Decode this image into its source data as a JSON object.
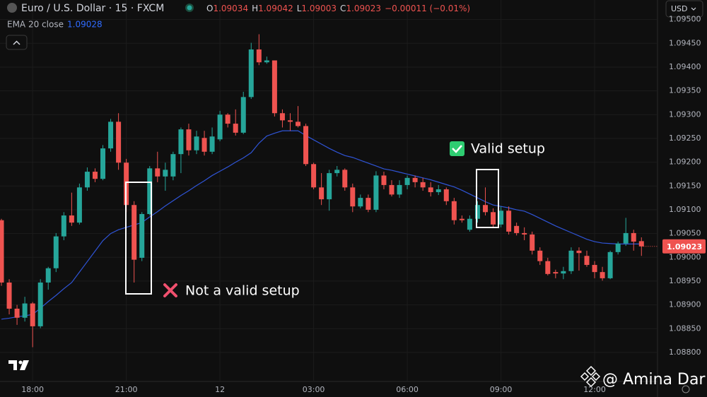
{
  "chart_data": {
    "type": "candlestick",
    "title": "Euro / U.S. Dollar · 15 · FXCM",
    "ohlc_labels": [
      "O",
      "H",
      "L",
      "C"
    ],
    "change": "−0.00011 (−0.01%)",
    "currency": "USD",
    "watermark": "@ Amina Dar",
    "up_color": "#26a69a",
    "down_color": "#ef5350",
    "grid": true,
    "categories": [
      null,
      null,
      null,
      null,
      "18:00",
      null,
      null,
      null,
      null,
      null,
      null,
      null,
      null,
      null,
      null,
      null,
      "21:00",
      null,
      null,
      null,
      null,
      null,
      null,
      null,
      null,
      null,
      null,
      null,
      "12",
      null,
      null,
      null,
      null,
      null,
      null,
      null,
      null,
      null,
      null,
      null,
      "03:00",
      null,
      null,
      null,
      null,
      null,
      null,
      null,
      null,
      null,
      null,
      null,
      "06:00",
      null,
      null,
      null,
      null,
      null,
      null,
      null,
      null,
      null,
      null,
      null,
      "09:00",
      null,
      null,
      null,
      null,
      null,
      null,
      null,
      null,
      null,
      null,
      null,
      "12:00",
      null,
      null,
      null,
      null,
      null,
      null
    ],
    "open": [
      1.09078,
      1.08947,
      1.08892,
      1.08873,
      1.08903,
      1.08855,
      1.08947,
      1.08977,
      1.09044,
      1.09088,
      1.09073,
      1.09147,
      1.0918,
      1.09165,
      1.09229,
      1.09285,
      1.09199,
      1.0911,
      1.08999,
      1.09091,
      1.09187,
      1.0917,
      1.0917,
      1.09217,
      1.09269,
      1.09225,
      1.09251,
      1.09222,
      1.09248,
      1.093,
      1.09281,
      1.09262,
      1.09337,
      1.09437,
      1.0941,
      1.09414,
      1.09303,
      1.09288,
      1.09285,
      1.09276,
      1.09196,
      1.09147,
      1.09122,
      1.09177,
      1.09184,
      1.09147,
      1.09107,
      1.09125,
      1.091,
      1.09172,
      1.09152,
      1.09132,
      1.09152,
      1.09167,
      1.09158,
      1.09147,
      1.09137,
      1.09143,
      1.09118,
      1.09081,
      1.09058,
      1.09081,
      1.0911,
      1.09095,
      1.09069,
      1.09098,
      1.09066,
      1.09051,
      1.09048,
      1.09014,
      1.08992,
      1.08969,
      1.08966,
      1.08971,
      1.09014,
      1.09003,
      1.08984,
      1.08969,
      1.08956,
      1.09011,
      1.09029,
      1.09051,
      1.09034
    ],
    "high": [
      1.09081,
      1.08954,
      1.089,
      1.08917,
      1.08906,
      1.08954,
      1.0898,
      1.09051,
      1.09095,
      1.09136,
      1.09155,
      1.09189,
      1.09187,
      1.09236,
      1.09291,
      1.09303,
      1.09207,
      1.09118,
      1.09095,
      1.09192,
      1.09222,
      1.09199,
      1.09222,
      1.09273,
      1.09281,
      1.09266,
      1.09266,
      1.09273,
      1.09308,
      1.09303,
      1.09311,
      1.09348,
      1.09451,
      1.09469,
      1.09422,
      1.09414,
      1.09311,
      1.09303,
      1.09318,
      1.09281,
      1.09199,
      1.09177,
      1.09184,
      1.09192,
      1.09187,
      1.09155,
      1.09132,
      1.09132,
      1.09181,
      1.0918,
      1.09162,
      1.09162,
      1.09172,
      1.09172,
      1.09167,
      1.09158,
      1.09152,
      1.09147,
      1.09125,
      1.09088,
      1.09088,
      1.09118,
      1.09147,
      1.09103,
      1.09107,
      1.09107,
      1.09073,
      1.09063,
      1.09054,
      1.09021,
      1.08999,
      1.08974,
      1.0898,
      1.09021,
      1.09021,
      1.09014,
      1.08992,
      1.0898,
      1.09014,
      1.09033,
      1.09083,
      1.09058,
      1.09042
    ],
    "low": [
      1.0894,
      1.0888,
      1.08858,
      1.08865,
      1.08811,
      1.08851,
      1.08932,
      1.08969,
      1.09036,
      1.09066,
      1.09069,
      1.0914,
      1.09158,
      1.09162,
      1.09222,
      1.09184,
      1.09095,
      1.08947,
      1.08992,
      1.09088,
      1.09158,
      1.0914,
      1.09162,
      1.09177,
      1.09214,
      1.09217,
      1.09214,
      1.09217,
      1.09244,
      1.09273,
      1.09256,
      1.09259,
      1.09333,
      1.09404,
      1.09407,
      1.09296,
      1.09273,
      1.09266,
      1.09273,
      1.09192,
      1.09143,
      1.0911,
      1.09098,
      1.0917,
      1.0914,
      1.09095,
      1.09103,
      1.09095,
      1.09095,
      1.09143,
      1.09128,
      1.09125,
      1.09143,
      1.09147,
      1.0914,
      1.09128,
      1.09131,
      1.0911,
      1.09069,
      1.09073,
      1.09054,
      1.09073,
      1.09088,
      1.09063,
      1.09063,
      1.09048,
      1.09046,
      1.09036,
      1.09006,
      1.08984,
      1.08962,
      1.08956,
      1.08954,
      1.08965,
      1.08972,
      1.0898,
      1.08956,
      1.08951,
      1.08954,
      1.09006,
      1.09024,
      1.09014,
      1.09003
    ],
    "close": [
      1.08947,
      1.08892,
      1.08873,
      1.08903,
      1.08855,
      1.08947,
      1.08977,
      1.09044,
      1.09088,
      1.09073,
      1.09147,
      1.0918,
      1.09165,
      1.09229,
      1.09285,
      1.09199,
      1.0911,
      1.08995,
      1.09091,
      1.09187,
      1.0917,
      1.09184,
      1.09217,
      1.09269,
      1.09225,
      1.09254,
      1.09222,
      1.09254,
      1.093,
      1.09281,
      1.09262,
      1.09337,
      1.09437,
      1.0941,
      1.09414,
      1.09303,
      1.09288,
      1.09285,
      1.09276,
      1.09196,
      1.09147,
      1.09122,
      1.09177,
      1.09184,
      1.09147,
      1.09107,
      1.09125,
      1.091,
      1.09172,
      1.09152,
      1.09132,
      1.09152,
      1.09167,
      1.09158,
      1.09147,
      1.09137,
      1.09143,
      1.09118,
      1.09078,
      1.09078,
      1.09081,
      1.0911,
      1.09095,
      1.09069,
      1.09098,
      1.09054,
      1.09051,
      1.09048,
      1.09014,
      1.08992,
      1.08965,
      1.08966,
      1.08971,
      1.09014,
      1.09009,
      1.08984,
      1.08969,
      1.08956,
      1.09011,
      1.09029,
      1.09051,
      1.09033,
      1.09023
    ],
    "ema": {
      "name": "EMA 20 close",
      "color": "#2f54d6",
      "values": [
        1.0887,
        1.08872,
        1.08875,
        1.08877,
        1.0888,
        1.08893,
        1.08907,
        1.0892,
        1.08934,
        1.08947,
        1.08969,
        1.08991,
        1.09013,
        1.09035,
        1.0905,
        1.09058,
        1.09063,
        1.09068,
        1.09073,
        1.09085,
        1.09096,
        1.09108,
        1.09119,
        1.0913,
        1.0914,
        1.09151,
        1.09161,
        1.09172,
        1.09181,
        1.0919,
        1.092,
        1.09209,
        1.0922,
        1.0924,
        1.09255,
        1.09261,
        1.09266,
        1.09266,
        1.09266,
        1.09256,
        1.09247,
        1.09238,
        1.09229,
        1.09221,
        1.09214,
        1.0921,
        1.09204,
        1.09198,
        1.09192,
        1.09186,
        1.09183,
        1.09179,
        1.09175,
        1.09171,
        1.09167,
        1.09163,
        1.09158,
        1.09153,
        1.09148,
        1.09141,
        1.09133,
        1.09125,
        1.09117,
        1.0911,
        1.09107,
        1.09104,
        1.091,
        1.09097,
        1.0909,
        1.09082,
        1.09074,
        1.09066,
        1.09059,
        1.09052,
        1.09045,
        1.09038,
        1.09033,
        1.0903,
        1.09029,
        1.09028,
        1.09028,
        1.09028,
        1.09028
      ]
    },
    "ylim": [
      1.08739,
      1.09541
    ],
    "yticks": [
      {
        "value": 1.095,
        "label": "1.09500"
      },
      {
        "value": 1.0945,
        "label": "1.09450"
      },
      {
        "value": 1.094,
        "label": "1.09400"
      },
      {
        "value": 1.0935,
        "label": "1.09350"
      },
      {
        "value": 1.093,
        "label": "1.09300"
      },
      {
        "value": 1.0925,
        "label": "1.09250"
      },
      {
        "value": 1.092,
        "label": "1.09200"
      },
      {
        "value": 1.0915,
        "label": "1.09150"
      },
      {
        "value": 1.091,
        "label": "1.09100"
      },
      {
        "value": 1.0905,
        "label": "1.09050"
      },
      {
        "value": 1.09,
        "label": "1.09000"
      },
      {
        "value": 1.0895,
        "label": "1.08950"
      },
      {
        "value": 1.089,
        "label": "1.08900"
      },
      {
        "value": 1.0885,
        "label": "1.08850"
      },
      {
        "value": 1.088,
        "label": "1.08800"
      }
    ],
    "annotations": [
      "Not a valid setup",
      "Valid setup"
    ]
  }
}
